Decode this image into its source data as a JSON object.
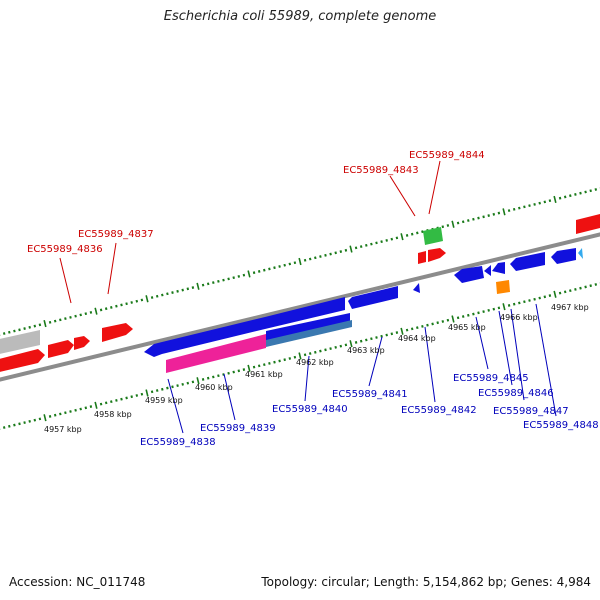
{
  "title": "Escherichia coli 55989, complete genome",
  "accession_text": "Accession: NC_011748",
  "stats_text": "Topology: circular; Length: 5,154,862 bp; Genes: 4,984",
  "colors": {
    "backbone": "#8c8c8c",
    "tick": "#1a7a1a",
    "forward_label": "#cc0000",
    "reverse_label": "#0000bb",
    "red": "#ee1111",
    "blue": "#1111dd",
    "pink": "#ee2299",
    "steel": "#3a78b0",
    "green": "#33bb44",
    "orange": "#ff8800",
    "grey": "#bbbbbb",
    "cyan": "#33aaee"
  },
  "scale_labels": [
    "4957 kbp",
    "4958 kbp",
    "4959 kbp",
    "4960 kbp",
    "4961 kbp",
    "4962 kbp",
    "4963 kbp",
    "4964 kbp",
    "4965 kbp",
    "4966 kbp",
    "4967 kbp"
  ],
  "gene_labels_forward": [
    "EC55989_4836",
    "EC55989_4837",
    "EC55989_4843",
    "EC55989_4844"
  ],
  "gene_labels_reverse": [
    "EC55989_4838",
    "EC55989_4839",
    "EC55989_4840",
    "EC55989_4841",
    "EC55989_4842",
    "EC55989_4845",
    "EC55989_4846",
    "EC55989_4847",
    "EC55989_4848"
  ]
}
